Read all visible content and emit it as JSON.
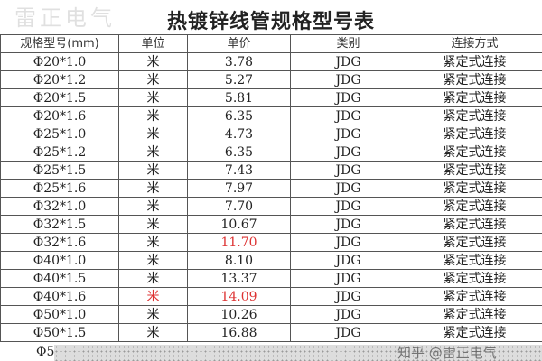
{
  "title": "热镀锌线管规格型号表",
  "headers": [
    "规格型号(mm)",
    "单位",
    "单价",
    "类别",
    "连接方式"
  ],
  "rows": [
    [
      "Φ20*1.0",
      "米",
      "3.78",
      "JDG",
      "紧定式连接"
    ],
    [
      "Φ20*1.2",
      "米",
      "5.27",
      "JDG",
      "紧定式连接"
    ],
    [
      "Φ20*1.5",
      "米",
      "5.81",
      "JDG",
      "紧定式连接"
    ],
    [
      "Φ20*1.6",
      "米",
      "6.35",
      "JDG",
      "紧定式连接"
    ],
    [
      "Φ25*1.0",
      "米",
      "4.73",
      "JDG",
      "紧定式连接"
    ],
    [
      "Φ25*1.2",
      "米",
      "6.35",
      "JDG",
      "紧定式连接"
    ],
    [
      "Φ25*1.5",
      "米",
      "7.43",
      "JDG",
      "紧定式连接"
    ],
    [
      "Φ25*1.6",
      "米",
      "7.97",
      "JDG",
      "紧定式连接"
    ],
    [
      "Φ32*1.0",
      "米",
      "7.70",
      "JDG",
      "紧定式连接"
    ],
    [
      "Φ32*1.5",
      "米",
      "10.67",
      "JDG",
      "紧定式连接"
    ],
    [
      "Φ32*1.6",
      "米",
      "11.70",
      "JDG",
      "紧定式连接"
    ],
    [
      "Φ40*1.0",
      "米",
      "8.10",
      "JDG",
      "紧定式连接"
    ],
    [
      "Φ40*1.5",
      "米",
      "13.37",
      "JDG",
      "紧定式连接"
    ],
    [
      "Φ40*1.6",
      "米",
      "14.09",
      "JDG",
      "紧定式连接"
    ],
    [
      "Φ50*1.0",
      "米",
      "10.26",
      "JDG",
      "紧定式连接"
    ],
    [
      "Φ50*1.5",
      "米",
      "16.88",
      "JDG",
      "紧定式连接"
    ]
  ],
  "red_cells": [
    [
      10,
      2
    ],
    [
      13,
      1
    ],
    [
      13,
      2
    ]
  ],
  "partial_row": "Φ5",
  "background_watermark": "雷正电气",
  "source_watermark": "知乎 @雷正电气",
  "highlight_color": "#dd3333"
}
